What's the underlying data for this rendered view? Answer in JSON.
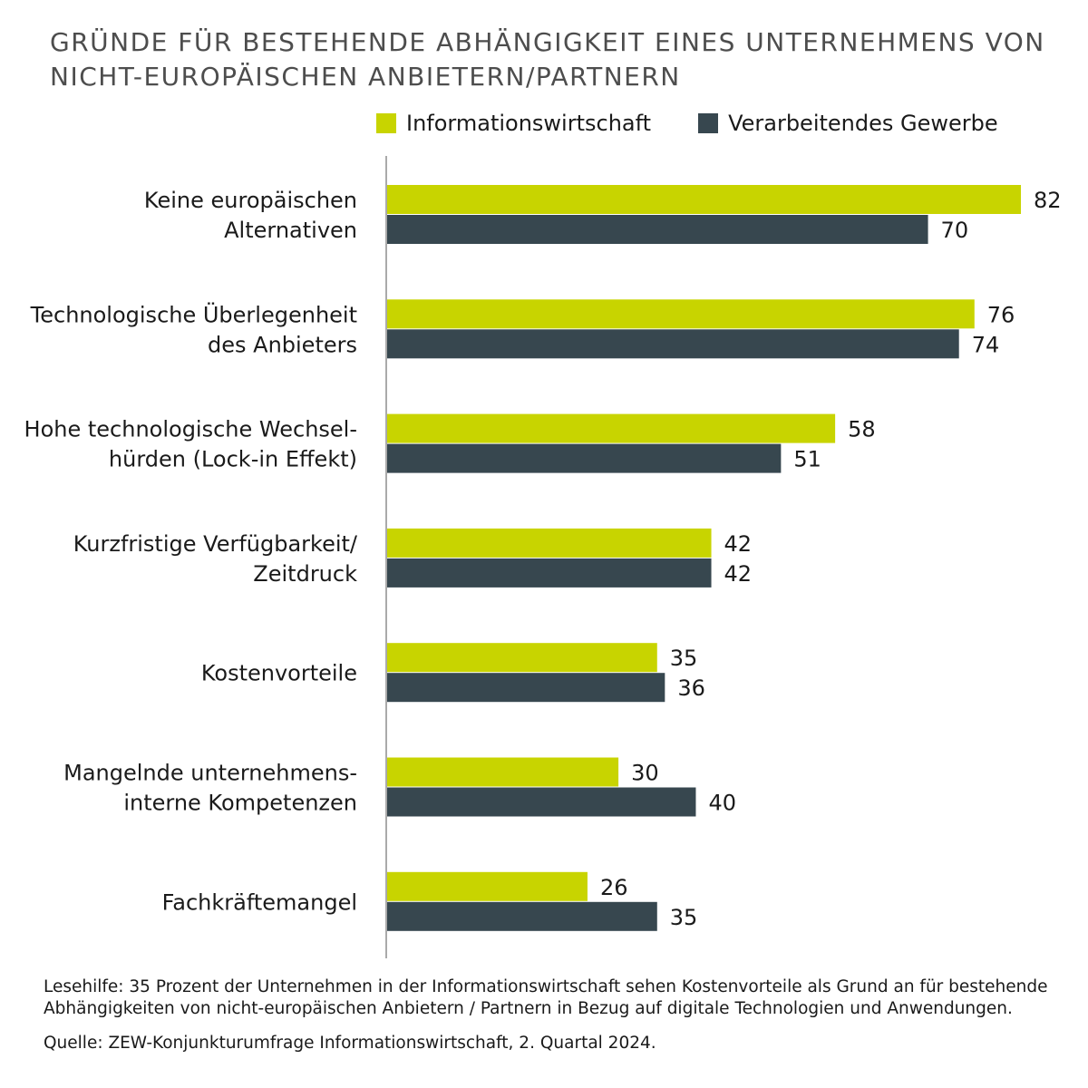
{
  "title_line1": "GRÜNDE FÜR BESTEHENDE ABHÄNGIGKEIT EINES UNTERNEHMENS VON",
  "title_line2": "NICHT-EUROPÄISCHEN ANBIETERN/PARTNERN",
  "colors": {
    "informationswirtschaft": "#c8d400",
    "verarbeitendes": "#37474f",
    "axis": "#aaaaaa"
  },
  "chart_data": {
    "type": "bar",
    "orientation": "horizontal",
    "categories": [
      [
        "Keine europäischen",
        "Alternativen"
      ],
      [
        "Technologische Überlegenheit",
        "des Anbieters"
      ],
      [
        "Hohe technologische Wechsel-",
        "hürden (Lock-in Effekt)"
      ],
      [
        "Kurzfristige Verfügbarkeit/",
        "Zeitdruck"
      ],
      [
        "Kostenvorteile"
      ],
      [
        "Mangelnde unternehmens-",
        "interne Kompetenzen"
      ],
      [
        "Fachkräftemangel"
      ]
    ],
    "series": [
      {
        "name": "Informationswirtschaft",
        "values": [
          82,
          76,
          58,
          42,
          35,
          30,
          26
        ]
      },
      {
        "name": "Verarbeitendes Gewerbe",
        "values": [
          70,
          74,
          51,
          42,
          36,
          40,
          35
        ]
      }
    ],
    "xlim": [
      0,
      82
    ],
    "legend_position": "top",
    "grid": false
  },
  "footnote_line1": "Lesehilfe: 35 Prozent der Unternehmen in der Informationswirtschaft sehen Kostenvorteile als Grund an für bestehende",
  "footnote_line2": "Abhängigkeiten von nicht-europäischen Anbietern / Partnern in Bezug auf digitale Technologien und Anwendungen.",
  "source": "Quelle: ZEW-Konjunkturumfrage Informationswirtschaft, 2. Quartal 2024."
}
